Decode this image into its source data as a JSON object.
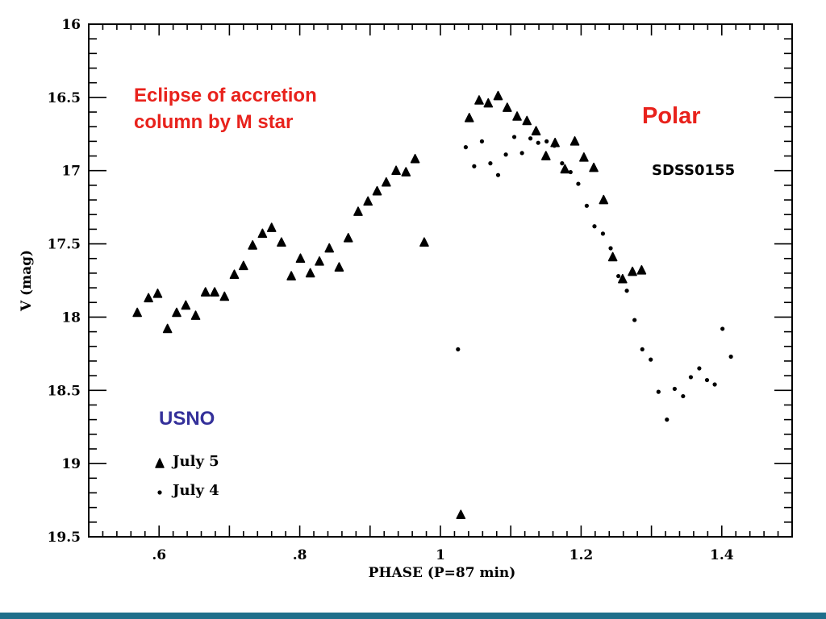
{
  "colors": {
    "annotation_red": "#e8221c",
    "annotation_blue": "#34309a",
    "footer": "#1f6f8b",
    "ink": "#000000"
  },
  "annotations": {
    "eclipse_note": "Eclipse of accretion column by M star",
    "class_label": "Polar",
    "object_name": "SDSS0155",
    "observatory": "USNO"
  },
  "chart_data": {
    "type": "scatter",
    "title": "",
    "xlabel": "PHASE (P=87 min)",
    "ylabel": "V (mag)",
    "xlim": [
      0.5,
      1.5
    ],
    "ylim": [
      19.5,
      16
    ],
    "y_inverted": true,
    "grid": false,
    "x_ticks": [
      0.6,
      0.8,
      1,
      1.2,
      1.4
    ],
    "x_tick_labels": [
      ".6",
      ".8",
      "1",
      "1.2",
      "1.4"
    ],
    "y_ticks": [
      16,
      16.5,
      17,
      17.5,
      18,
      18.5,
      19,
      19.5
    ],
    "y_tick_labels": [
      "16",
      "16.5",
      "17",
      "17.5",
      "18",
      "18.5",
      "19",
      "19.5"
    ],
    "legend_placement": "bottom-left",
    "series": [
      {
        "name": "July 5",
        "marker": "triangle",
        "x": [
          0.569,
          0.585,
          0.598,
          0.612,
          0.625,
          0.638,
          0.652,
          0.666,
          0.679,
          0.693,
          0.707,
          0.72,
          0.733,
          0.747,
          0.76,
          0.774,
          0.788,
          0.801,
          0.815,
          0.828,
          0.842,
          0.856,
          0.869,
          0.883,
          0.897,
          0.91,
          0.923,
          0.937,
          0.951,
          0.964,
          0.977,
          1.029,
          1.041,
          1.055,
          1.068,
          1.082,
          1.095,
          1.109,
          1.123,
          1.136,
          1.15,
          1.163,
          1.177,
          1.191,
          1.204,
          1.218,
          1.232,
          1.245,
          1.259,
          1.273,
          1.286
        ],
        "y": [
          17.97,
          17.87,
          17.84,
          18.08,
          17.97,
          17.92,
          17.99,
          17.83,
          17.83,
          17.86,
          17.71,
          17.65,
          17.51,
          17.43,
          17.39,
          17.49,
          17.72,
          17.6,
          17.7,
          17.62,
          17.53,
          17.66,
          17.46,
          17.28,
          17.21,
          17.14,
          17.08,
          17.0,
          17.01,
          16.92,
          17.49,
          19.35,
          16.64,
          16.52,
          16.54,
          16.49,
          16.57,
          16.63,
          16.66,
          16.73,
          16.9,
          16.81,
          16.99,
          16.8,
          16.91,
          16.98,
          17.2,
          17.59,
          17.74,
          17.69,
          17.68
        ]
      },
      {
        "name": "July 4",
        "marker": "dot",
        "x": [
          1.025,
          1.036,
          1.048,
          1.059,
          1.071,
          1.082,
          1.093,
          1.105,
          1.116,
          1.128,
          1.139,
          1.151,
          1.162,
          1.173,
          1.185,
          1.196,
          1.208,
          1.219,
          1.231,
          1.242,
          1.253,
          1.265,
          1.276,
          1.287,
          1.299,
          1.31,
          1.322,
          1.333,
          1.345,
          1.356,
          1.368,
          1.379,
          1.39,
          1.401,
          1.413
        ],
        "y": [
          18.22,
          16.84,
          16.97,
          16.8,
          16.95,
          17.03,
          16.89,
          16.77,
          16.88,
          16.78,
          16.81,
          16.8,
          16.83,
          16.95,
          17.01,
          17.09,
          17.24,
          17.38,
          17.43,
          17.53,
          17.72,
          17.82,
          18.02,
          18.22,
          18.29,
          18.51,
          18.7,
          18.49,
          18.54,
          18.41,
          18.35,
          18.43,
          18.46,
          18.08,
          18.27
        ]
      }
    ]
  }
}
